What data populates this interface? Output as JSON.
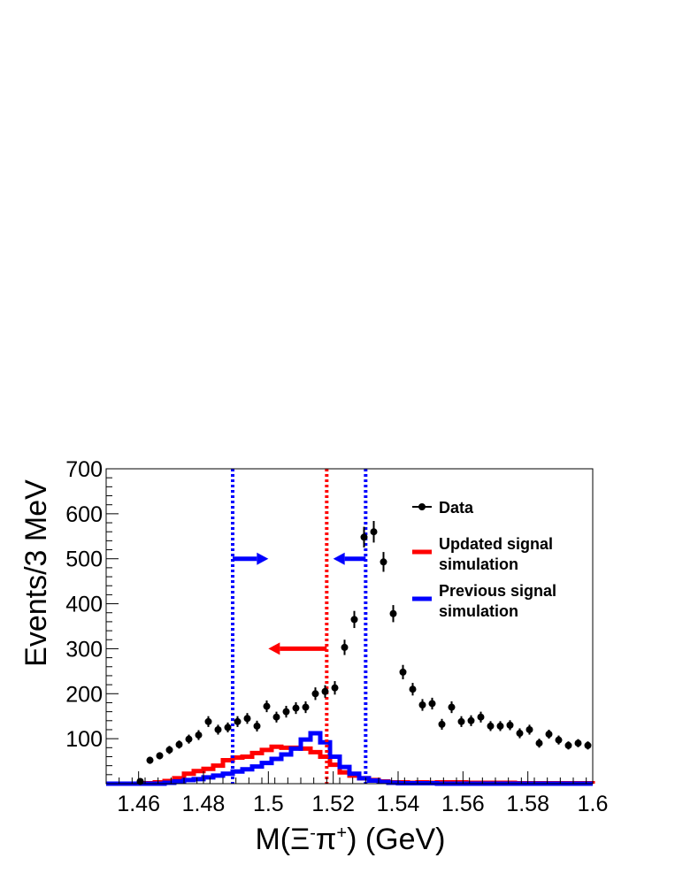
{
  "chart_data": {
    "type": "histogram",
    "xlabel_main": "M(Ξ",
    "xlabel_sup1": "-",
    "xlabel_pi": "π",
    "xlabel_sup2": "+",
    "xlabel_end": ") (GeV)",
    "ylabel": "Events/3 MeV",
    "xlim": [
      1.45,
      1.6
    ],
    "ylim": [
      0,
      700
    ],
    "x_ticks": [
      1.46,
      1.48,
      1.5,
      1.52,
      1.54,
      1.56,
      1.58,
      1.6
    ],
    "x_tick_labels": [
      "1.46",
      "1.48",
      "1.5",
      "1.52",
      "1.54",
      "1.56",
      "1.58",
      "1.6"
    ],
    "y_ticks": [
      100,
      200,
      300,
      400,
      500,
      600,
      700
    ],
    "y_tick_labels": [
      "100",
      "200",
      "300",
      "400",
      "500",
      "600",
      "700"
    ],
    "bin_edges": [
      1.45,
      1.453,
      1.456,
      1.459,
      1.462,
      1.465,
      1.468,
      1.471,
      1.474,
      1.477,
      1.48,
      1.483,
      1.486,
      1.489,
      1.492,
      1.495,
      1.498,
      1.501,
      1.504,
      1.507,
      1.51,
      1.513,
      1.516,
      1.519,
      1.522,
      1.525,
      1.528,
      1.531,
      1.534,
      1.537,
      1.54,
      1.543,
      1.546,
      1.549,
      1.552,
      1.555,
      1.558,
      1.561,
      1.564,
      1.567,
      1.57,
      1.573,
      1.576,
      1.579,
      1.582,
      1.585,
      1.588,
      1.591,
      1.594,
      1.597,
      1.6
    ],
    "series": [
      {
        "name": "Data",
        "kind": "points",
        "color": "#000000",
        "x": [
          1.4605,
          1.4635,
          1.4665,
          1.4695,
          1.4725,
          1.4755,
          1.4785,
          1.4815,
          1.4845,
          1.4875,
          1.4905,
          1.4935,
          1.4965,
          1.4995,
          1.5025,
          1.5055,
          1.5085,
          1.5115,
          1.5145,
          1.5175,
          1.5205,
          1.5235,
          1.5265,
          1.5295,
          1.5325,
          1.5355,
          1.5385,
          1.5415,
          1.5445,
          1.5475,
          1.5505,
          1.5535,
          1.5565,
          1.5595,
          1.5625,
          1.5655,
          1.5685,
          1.5715,
          1.5745,
          1.5775,
          1.5805,
          1.5835,
          1.5865,
          1.5895,
          1.5925,
          1.5955,
          1.5985
        ],
        "y": [
          5,
          52,
          62,
          75,
          87,
          99,
          108,
          138,
          120,
          125,
          138,
          145,
          128,
          172,
          148,
          160,
          168,
          170,
          200,
          205,
          213,
          303,
          365,
          548,
          560,
          493,
          378,
          248,
          210,
          175,
          178,
          132,
          170,
          138,
          140,
          148,
          128,
          128,
          130,
          112,
          120,
          90,
          110,
          97,
          85,
          90,
          85
        ],
        "err": [
          4,
          8,
          8,
          9,
          9,
          10,
          11,
          12,
          11,
          11,
          12,
          12,
          12,
          13,
          12,
          13,
          13,
          13,
          14,
          14,
          15,
          17,
          19,
          23,
          24,
          22,
          19,
          16,
          14,
          13,
          13,
          12,
          13,
          12,
          12,
          12,
          11,
          11,
          11,
          11,
          11,
          10,
          10,
          10,
          9,
          9,
          9
        ]
      },
      {
        "name": "Updated signal simulation",
        "kind": "hist",
        "color": "#ff0000",
        "values": [
          0,
          0,
          0,
          0,
          1,
          3,
          6,
          12,
          22,
          28,
          33,
          40,
          52,
          58,
          60,
          68,
          75,
          82,
          80,
          80,
          78,
          70,
          60,
          42,
          25,
          18,
          12,
          8,
          5,
          3,
          3,
          2,
          3,
          2,
          3,
          3,
          3,
          2,
          2,
          2,
          2,
          2,
          1,
          1,
          1,
          1,
          1,
          1,
          1,
          1
        ]
      },
      {
        "name": "Previous signal simulation",
        "kind": "hist",
        "color": "#0000ff",
        "values": [
          0,
          0,
          0,
          0,
          0,
          0,
          2,
          5,
          8,
          10,
          14,
          18,
          22,
          27,
          32,
          38,
          46,
          55,
          65,
          78,
          98,
          112,
          92,
          60,
          37,
          22,
          12,
          7,
          4,
          2,
          1,
          1,
          1,
          1,
          0,
          0,
          0,
          0,
          0,
          0,
          0,
          0,
          0,
          0,
          0,
          0,
          0,
          0,
          0,
          0
        ]
      }
    ],
    "cut_lines": [
      {
        "x": 1.489,
        "color": "#0000ff",
        "arrow_to": 1.5,
        "arrow_y": 500
      },
      {
        "x": 1.518,
        "color": "#ff0000",
        "arrow_to": 1.5,
        "arrow_y": 300
      },
      {
        "x": 1.53,
        "color": "#0000ff",
        "arrow_to": 1.52,
        "arrow_y": 500
      }
    ],
    "legend": {
      "position": "top-right",
      "entries": [
        {
          "lines": [
            "Data"
          ],
          "color": "#000000",
          "style": "marker"
        },
        {
          "lines": [
            "Updated signal",
            "simulation"
          ],
          "color": "#ff0000",
          "style": "line"
        },
        {
          "lines": [
            "Previous signal",
            "simulation"
          ],
          "color": "#0000ff",
          "style": "line"
        }
      ]
    }
  }
}
